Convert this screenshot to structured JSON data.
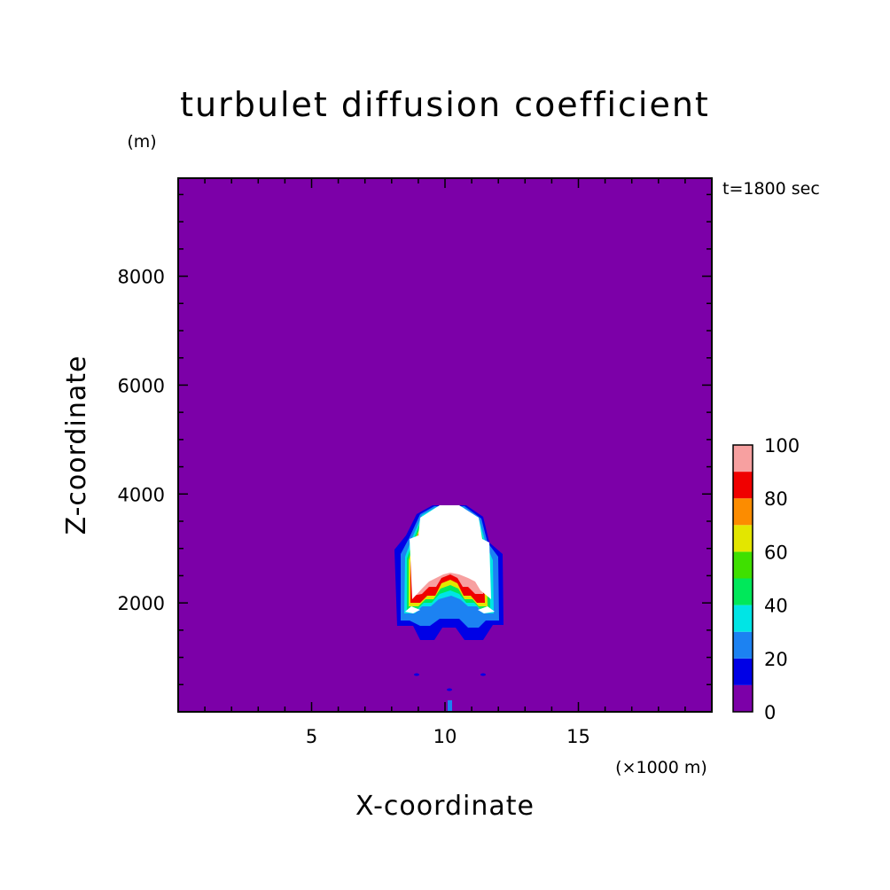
{
  "chart_data": {
    "type": "heatmap",
    "title": "turbulet diffusion coefficient",
    "xlabel": "X-coordinate",
    "ylabel": "Z-coordinate",
    "x_unit": "(×1000 m)",
    "y_unit": "(m)",
    "time_label": "t=1800 sec",
    "xlim": [
      0,
      20
    ],
    "ylim": [
      0,
      9800
    ],
    "x_ticks": [
      "5",
      "10",
      "15"
    ],
    "x_tick_values": [
      5,
      10,
      15
    ],
    "y_ticks": [
      "2000",
      "4000",
      "6000",
      "8000"
    ],
    "y_tick_values": [
      2000,
      4000,
      6000,
      8000
    ],
    "colorbar": {
      "levels": [
        0,
        10,
        20,
        30,
        40,
        50,
        60,
        70,
        80,
        90,
        100
      ],
      "tick_labels": [
        "0",
        "20",
        "40",
        "60",
        "80",
        "100"
      ],
      "colors": [
        "#7c00a8",
        "#0000e6",
        "#1c82f2",
        "#00e5e5",
        "#00e85a",
        "#3fe000",
        "#e3e600",
        "#fc8c00",
        "#f00000",
        "#f7a0a0"
      ],
      "above_max_color": "#ffffff"
    },
    "background_value": 0,
    "feature": {
      "description_hint": "plume of elevated values centered near x=10 km, z≈1500–3900 m",
      "center_x": 10.0,
      "base_z": 1500,
      "top_z": 3900
    }
  }
}
